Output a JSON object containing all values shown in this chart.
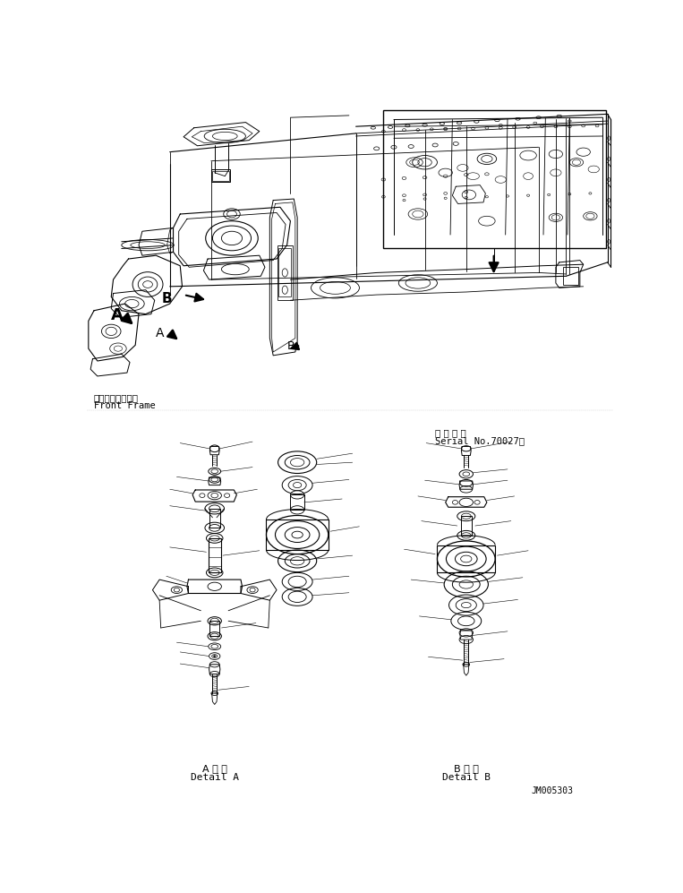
{
  "bg_color": "#ffffff",
  "line_color": "#000000",
  "fig_width": 7.63,
  "fig_height": 9.97,
  "dpi": 100,
  "label_detail_a_jp": "A 詳 細",
  "label_detail_a_en": "Detail A",
  "label_detail_b_jp": "B 詳 細",
  "label_detail_b_en": "Detail B",
  "label_serial_jp": "適 用 号 機",
  "label_serial_en": "Serial No.70027～",
  "label_front_frame_jp": "フロントフレーム",
  "label_front_frame_en": "Front Frame",
  "label_doc_num": "JM005303",
  "font_size_labels": 7,
  "font_size_serial": 7,
  "font_size_detail": 7.5,
  "font_size_docnum": 7
}
